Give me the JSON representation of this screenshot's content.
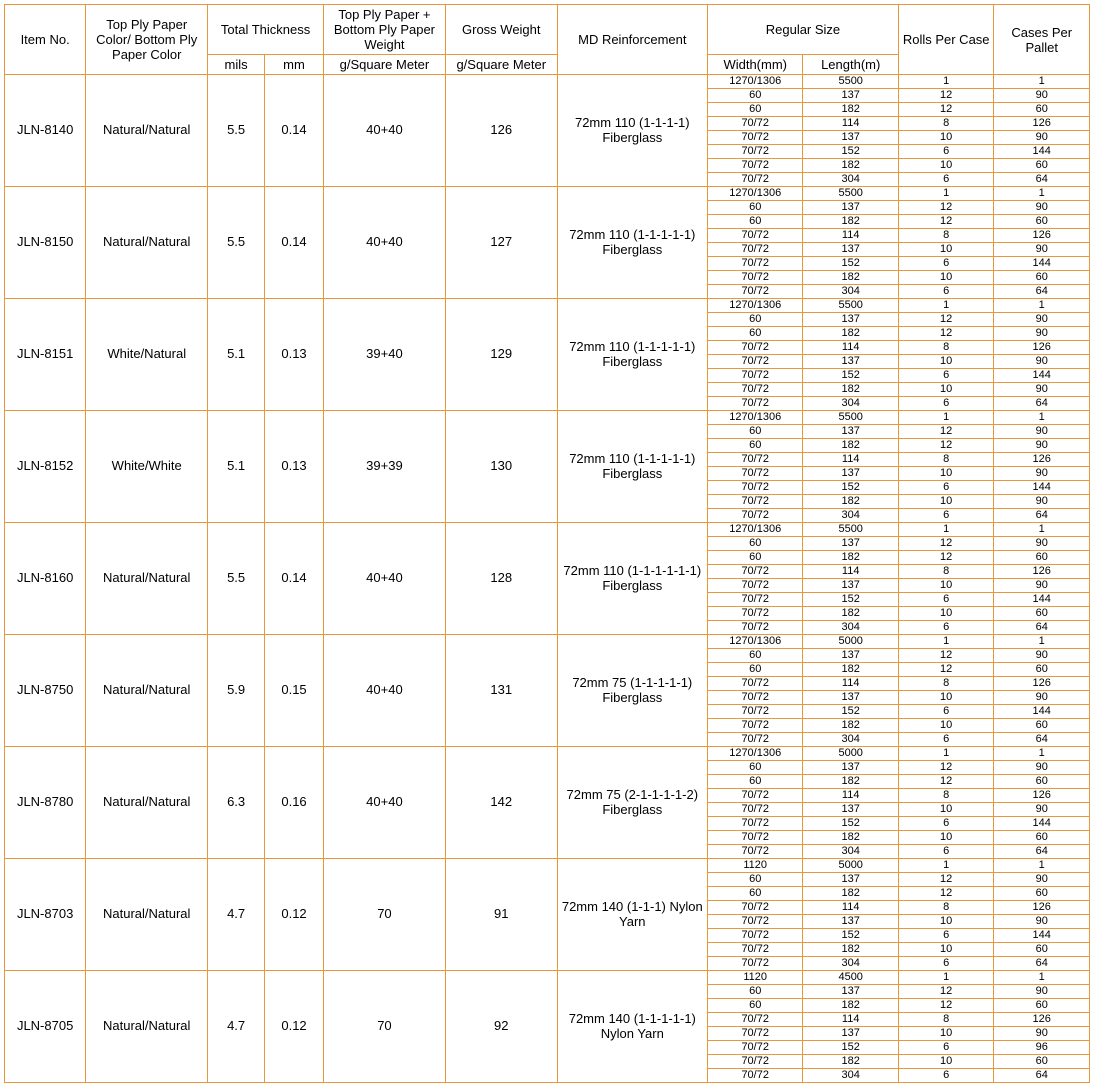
{
  "headers": {
    "item": "Item No.",
    "color": "Top Ply Paper Color/ Bottom Ply Paper Color",
    "thickness": "Total Thickness",
    "mils": "mils",
    "mm": "mm",
    "plyweight": "Top Ply Paper + Bottom Ply Paper Weight",
    "gsm": "g/Square Meter",
    "gross": "Gross Weight",
    "md": "MD Reinforcement",
    "regsize": "Regular Size",
    "width": "Width(mm)",
    "length": "Length(m)",
    "rolls": "Rolls Per Case",
    "cases": "Cases Per Pallet"
  },
  "colors": {
    "border": "#e8983a",
    "text": "#000000",
    "background": "#ffffff"
  },
  "size_sets": {
    "A": [
      [
        "1270/1306",
        "5500",
        "1",
        "1"
      ],
      [
        "60",
        "137",
        "12",
        "90"
      ],
      [
        "60",
        "182",
        "12",
        "60"
      ],
      [
        "70/72",
        "114",
        "8",
        "126"
      ],
      [
        "70/72",
        "137",
        "10",
        "90"
      ],
      [
        "70/72",
        "152",
        "6",
        "144"
      ],
      [
        "70/72",
        "182",
        "10",
        "60"
      ],
      [
        "70/72",
        "304",
        "6",
        "64"
      ]
    ],
    "B": [
      [
        "1270/1306",
        "5500",
        "1",
        "1"
      ],
      [
        "60",
        "137",
        "12",
        "90"
      ],
      [
        "60",
        "182",
        "12",
        "90"
      ],
      [
        "70/72",
        "114",
        "8",
        "126"
      ],
      [
        "70/72",
        "137",
        "10",
        "90"
      ],
      [
        "70/72",
        "152",
        "6",
        "144"
      ],
      [
        "70/72",
        "182",
        "10",
        "90"
      ],
      [
        "70/72",
        "304",
        "6",
        "64"
      ]
    ],
    "C": [
      [
        "1270/1306",
        "5000",
        "1",
        "1"
      ],
      [
        "60",
        "137",
        "12",
        "90"
      ],
      [
        "60",
        "182",
        "12",
        "60"
      ],
      [
        "70/72",
        "114",
        "8",
        "126"
      ],
      [
        "70/72",
        "137",
        "10",
        "90"
      ],
      [
        "70/72",
        "152",
        "6",
        "144"
      ],
      [
        "70/72",
        "182",
        "10",
        "60"
      ],
      [
        "70/72",
        "304",
        "6",
        "64"
      ]
    ],
    "D": [
      [
        "1120",
        "5000",
        "1",
        "1"
      ],
      [
        "60",
        "137",
        "12",
        "90"
      ],
      [
        "60",
        "182",
        "12",
        "60"
      ],
      [
        "70/72",
        "114",
        "8",
        "126"
      ],
      [
        "70/72",
        "137",
        "10",
        "90"
      ],
      [
        "70/72",
        "152",
        "6",
        "144"
      ],
      [
        "70/72",
        "182",
        "10",
        "60"
      ],
      [
        "70/72",
        "304",
        "6",
        "64"
      ]
    ],
    "E": [
      [
        "1120",
        "4500",
        "1",
        "1"
      ],
      [
        "60",
        "137",
        "12",
        "90"
      ],
      [
        "60",
        "182",
        "12",
        "60"
      ],
      [
        "70/72",
        "114",
        "8",
        "126"
      ],
      [
        "70/72",
        "137",
        "10",
        "90"
      ],
      [
        "70/72",
        "152",
        "6",
        "96"
      ],
      [
        "70/72",
        "182",
        "10",
        "60"
      ],
      [
        "70/72",
        "304",
        "6",
        "64"
      ]
    ]
  },
  "products": [
    {
      "item": "JLN-8140",
      "color": "Natural/Natural",
      "mils": "5.5",
      "mm": "0.14",
      "plyw": "40+40",
      "gross": "126",
      "md": "72mm 110 (1-1-1-1) Fiberglass",
      "sizes": "A"
    },
    {
      "item": "JLN-8150",
      "color": "Natural/Natural",
      "mils": "5.5",
      "mm": "0.14",
      "plyw": "40+40",
      "gross": "127",
      "md": "72mm 110 (1-1-1-1-1) Fiberglass",
      "sizes": "A"
    },
    {
      "item": "JLN-8151",
      "color": "White/Natural",
      "mils": "5.1",
      "mm": "0.13",
      "plyw": "39+40",
      "gross": "129",
      "md": "72mm 110 (1-1-1-1-1) Fiberglass",
      "sizes": "B"
    },
    {
      "item": "JLN-8152",
      "color": "White/White",
      "mils": "5.1",
      "mm": "0.13",
      "plyw": "39+39",
      "gross": "130",
      "md": "72mm 110 (1-1-1-1-1) Fiberglass",
      "sizes": "B"
    },
    {
      "item": "JLN-8160",
      "color": "Natural/Natural",
      "mils": "5.5",
      "mm": "0.14",
      "plyw": "40+40",
      "gross": "128",
      "md": "72mm 110 (1-1-1-1-1-1) Fiberglass",
      "sizes": "A"
    },
    {
      "item": "JLN-8750",
      "color": "Natural/Natural",
      "mils": "5.9",
      "mm": "0.15",
      "plyw": "40+40",
      "gross": "131",
      "md": "72mm 75 (1-1-1-1-1) Fiberglass",
      "sizes": "C"
    },
    {
      "item": "JLN-8780",
      "color": "Natural/Natural",
      "mils": "6.3",
      "mm": "0.16",
      "plyw": "40+40",
      "gross": "142",
      "md": "72mm 75 (2-1-1-1-1-2) Fiberglass",
      "sizes": "C"
    },
    {
      "item": "JLN-8703",
      "color": "Natural/Natural",
      "mils": "4.7",
      "mm": "0.12",
      "plyw": "70",
      "gross": "91",
      "md": "72mm 140 (1-1-1) Nylon Yarn",
      "sizes": "D"
    },
    {
      "item": "JLN-8705",
      "color": "Natural/Natural",
      "mils": "4.7",
      "mm": "0.12",
      "plyw": "70",
      "gross": "92",
      "md": "72mm 140 (1-1-1-1-1) Nylon Yarn",
      "sizes": "E"
    }
  ]
}
